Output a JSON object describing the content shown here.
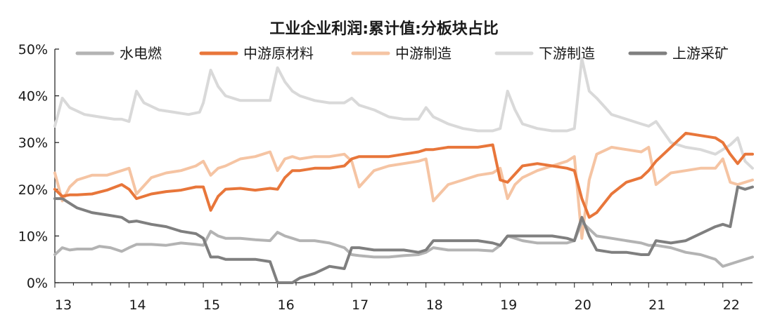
{
  "chart_data": {
    "type": "line",
    "title": "工业企业利润:累计值:分板块占比",
    "xlabel": "",
    "ylabel": "",
    "ylim": [
      0,
      50
    ],
    "yticks": [
      0,
      10,
      20,
      30,
      40,
      50
    ],
    "ytick_labels": [
      "0%",
      "10%",
      "20%",
      "30%",
      "40%",
      "50%"
    ],
    "xlim": [
      13,
      22.4
    ],
    "xticks": [
      13,
      14,
      15,
      16,
      17,
      18,
      19,
      20,
      21,
      22
    ],
    "xtick_labels": [
      "13",
      "14",
      "15",
      "16",
      "17",
      "18",
      "19",
      "20",
      "21",
      "22"
    ],
    "grid": false,
    "legend_position": "top",
    "series": [
      {
        "name": "水电燃",
        "color": "#b3b3b3",
        "x": [
          13.0,
          13.1,
          13.2,
          13.3,
          13.5,
          13.6,
          13.75,
          13.9,
          14.0,
          14.1,
          14.3,
          14.5,
          14.7,
          14.9,
          15.0,
          15.1,
          15.2,
          15.3,
          15.5,
          15.7,
          15.9,
          16.0,
          16.1,
          16.2,
          16.3,
          16.5,
          16.7,
          16.9,
          17.0,
          17.1,
          17.3,
          17.5,
          17.7,
          17.9,
          18.0,
          18.1,
          18.3,
          18.5,
          18.7,
          18.9,
          19.0,
          19.1,
          19.3,
          19.5,
          19.7,
          19.9,
          20.0,
          20.1,
          20.2,
          20.3,
          20.5,
          20.7,
          20.9,
          21.0,
          21.1,
          21.3,
          21.5,
          21.7,
          21.9,
          22.0,
          22.1,
          22.2,
          22.3,
          22.4
        ],
        "values": [
          6,
          7.5,
          7,
          7.2,
          7.2,
          7.8,
          7.5,
          6.7,
          7.5,
          8.2,
          8.2,
          8,
          8.5,
          8.2,
          8,
          11,
          10,
          9.5,
          9.5,
          9.2,
          9,
          10.8,
          10,
          9.5,
          9,
          9,
          8.5,
          7.5,
          6,
          5.8,
          5.5,
          5.5,
          5.8,
          6,
          6.5,
          7.5,
          7,
          7,
          7,
          6.8,
          8,
          10,
          9,
          8.5,
          8.5,
          8.5,
          9,
          13,
          11.5,
          10,
          9.5,
          9,
          8.5,
          8,
          8,
          7.5,
          6.5,
          6,
          5,
          3.5,
          4,
          4.5,
          5,
          5.5
        ]
      },
      {
        "name": "中游原材料",
        "color": "#e8763a",
        "x": [
          13.0,
          13.1,
          13.2,
          13.3,
          13.5,
          13.7,
          13.9,
          14.0,
          14.1,
          14.3,
          14.5,
          14.7,
          14.9,
          15.0,
          15.1,
          15.2,
          15.3,
          15.5,
          15.7,
          15.9,
          16.0,
          16.1,
          16.2,
          16.3,
          16.5,
          16.7,
          16.9,
          17.0,
          17.1,
          17.3,
          17.5,
          17.7,
          17.9,
          18.0,
          18.1,
          18.3,
          18.5,
          18.7,
          18.9,
          19.0,
          19.1,
          19.3,
          19.5,
          19.7,
          19.9,
          20.0,
          20.1,
          20.2,
          20.3,
          20.5,
          20.7,
          20.9,
          21.0,
          21.1,
          21.3,
          21.5,
          21.7,
          21.9,
          22.0,
          22.1,
          22.2,
          22.3,
          22.4
        ],
        "values": [
          20,
          18.5,
          18.8,
          18.8,
          19,
          19.8,
          21,
          20,
          18,
          19,
          19.5,
          19.8,
          20.5,
          20.5,
          15.5,
          18.5,
          20,
          20.2,
          19.8,
          20.2,
          20,
          22.5,
          24,
          24,
          24.5,
          24.5,
          25,
          26.5,
          27,
          27,
          27,
          27.5,
          28,
          28.5,
          28.5,
          29,
          29,
          29,
          29.5,
          22,
          21.5,
          25,
          25.5,
          25,
          24.5,
          24,
          18,
          14,
          15,
          19,
          21.5,
          22.5,
          24,
          26,
          29,
          32,
          31.5,
          31,
          30,
          27.5,
          25.5,
          27.5,
          27.5
        ]
      },
      {
        "name": "中游制造",
        "color": "#f5c4a3",
        "x": [
          13.0,
          13.1,
          13.2,
          13.3,
          13.5,
          13.7,
          13.9,
          14.0,
          14.1,
          14.3,
          14.5,
          14.7,
          14.9,
          15.0,
          15.1,
          15.2,
          15.3,
          15.5,
          15.7,
          15.9,
          16.0,
          16.1,
          16.2,
          16.3,
          16.5,
          16.7,
          16.9,
          17.0,
          17.1,
          17.3,
          17.5,
          17.7,
          17.9,
          18.0,
          18.1,
          18.3,
          18.5,
          18.7,
          18.9,
          19.0,
          19.1,
          19.2,
          19.3,
          19.5,
          19.7,
          19.9,
          20.0,
          20.1,
          20.2,
          20.3,
          20.5,
          20.7,
          20.9,
          21.0,
          21.1,
          21.3,
          21.5,
          21.7,
          21.9,
          22.0,
          22.1,
          22.2,
          22.3,
          22.4
        ],
        "values": [
          23.5,
          17.5,
          20.5,
          22,
          23,
          23,
          24,
          24.5,
          19,
          22.5,
          23.5,
          24,
          25,
          26,
          23,
          24.5,
          25,
          26.5,
          27,
          28,
          24,
          26.5,
          27,
          26.5,
          27,
          27,
          27.5,
          26,
          20.5,
          24,
          25,
          25.5,
          26,
          26.5,
          17.5,
          21,
          22,
          23,
          23.5,
          24.5,
          18,
          21,
          22.5,
          24,
          25,
          26,
          27,
          9.5,
          22,
          27.5,
          29,
          28.5,
          28,
          29,
          21,
          23.5,
          24,
          24.5,
          24.5,
          26.5,
          21.5,
          21,
          21.5,
          22
        ]
      },
      {
        "name": "下游制造",
        "color": "#d9d9d9",
        "x": [
          13.0,
          13.1,
          13.2,
          13.4,
          13.6,
          13.8,
          13.9,
          14.0,
          14.1,
          14.2,
          14.4,
          14.6,
          14.8,
          14.95,
          15.0,
          15.1,
          15.2,
          15.3,
          15.5,
          15.7,
          15.9,
          16.0,
          16.1,
          16.2,
          16.3,
          16.5,
          16.7,
          16.9,
          17.0,
          17.1,
          17.3,
          17.5,
          17.7,
          17.9,
          18.0,
          18.1,
          18.3,
          18.5,
          18.7,
          18.9,
          19.0,
          19.1,
          19.2,
          19.3,
          19.5,
          19.7,
          19.9,
          20.0,
          20.1,
          20.2,
          20.3,
          20.5,
          20.7,
          20.9,
          21.0,
          21.1,
          21.3,
          21.5,
          21.7,
          21.9,
          22.0,
          22.1,
          22.2,
          22.3,
          22.4
        ],
        "values": [
          33.5,
          39.5,
          37.5,
          36,
          35.5,
          35,
          35,
          34.5,
          41,
          38.5,
          37,
          36.5,
          36,
          36.5,
          38.5,
          45.5,
          42,
          40,
          39,
          39,
          39,
          46,
          43,
          41,
          40,
          39,
          38.5,
          38.5,
          39.5,
          38,
          37,
          35.5,
          35,
          35,
          37.5,
          35.5,
          34,
          33,
          32.5,
          32.5,
          33,
          41,
          37,
          34,
          33,
          32.5,
          32.5,
          33,
          48,
          41,
          39.5,
          36,
          35,
          34,
          33.5,
          34.5,
          30,
          29,
          28.5,
          27.5,
          28.5,
          29.5,
          31,
          26,
          24.5
        ]
      },
      {
        "name": "上游采矿",
        "color": "#7f7f7f",
        "x": [
          13.0,
          13.1,
          13.2,
          13.3,
          13.5,
          13.7,
          13.9,
          14.0,
          14.1,
          14.3,
          14.5,
          14.7,
          14.9,
          15.0,
          15.1,
          15.2,
          15.3,
          15.5,
          15.7,
          15.9,
          16.0,
          16.1,
          16.2,
          16.3,
          16.5,
          16.7,
          16.9,
          17.0,
          17.1,
          17.3,
          17.5,
          17.7,
          17.9,
          18.0,
          18.1,
          18.3,
          18.5,
          18.7,
          18.9,
          19.0,
          19.1,
          19.3,
          19.5,
          19.7,
          19.9,
          20.0,
          20.1,
          20.2,
          20.3,
          20.5,
          20.7,
          20.9,
          21.0,
          21.1,
          21.3,
          21.5,
          21.7,
          21.9,
          22.0,
          22.1,
          22.2,
          22.3,
          22.4
        ],
        "values": [
          18,
          18,
          17,
          16,
          15,
          14.5,
          14,
          13,
          13.2,
          12.5,
          12,
          11,
          10.5,
          9.5,
          5.5,
          5.5,
          5,
          5,
          5,
          4.5,
          0,
          0,
          0,
          1,
          2,
          3.5,
          3,
          7.5,
          7.5,
          7,
          7,
          7,
          6.5,
          7,
          9,
          9,
          9,
          9,
          8.5,
          8,
          10,
          10,
          10,
          10,
          9.5,
          9,
          14,
          10,
          7,
          6.5,
          6.5,
          6,
          6,
          9,
          8.5,
          9,
          10.5,
          12,
          12.5,
          12,
          20.5,
          20,
          20.5
        ]
      }
    ]
  }
}
